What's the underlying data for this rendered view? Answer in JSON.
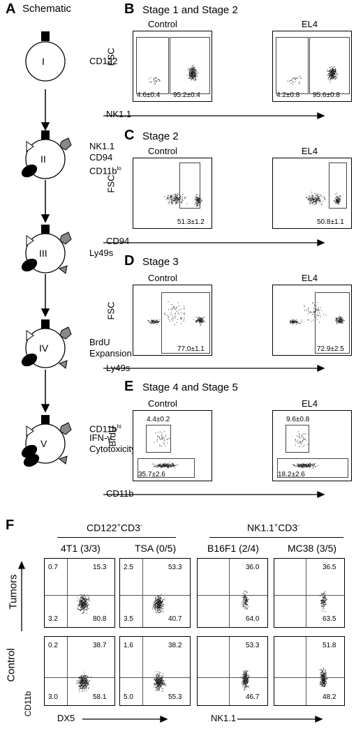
{
  "panelA": {
    "letter": "A",
    "title": "Schematic",
    "stages": [
      {
        "roman": "I",
        "label_lines": [
          "CD122"
        ]
      },
      {
        "roman": "II",
        "label_lines": [
          "NK1.1",
          "CD94",
          "CD11b"
        ],
        "sup": "lo"
      },
      {
        "roman": "III",
        "label_lines": [
          "Ly49s"
        ]
      },
      {
        "roman": "IV",
        "label_lines": [
          "BrdU",
          "Expansion"
        ]
      },
      {
        "roman": "V",
        "label_lines": [
          "CD11b",
          "IFN-γ",
          "Cytotoxicity"
        ],
        "sup": "hi"
      }
    ]
  },
  "panelB": {
    "letter": "B",
    "title": "Stage 1 and Stage 2",
    "plots": [
      {
        "label": "Control",
        "gates": [
          "4.6±0.4",
          "95.2±0.4"
        ]
      },
      {
        "label": "EL4",
        "gates": [
          "4.2±0.8",
          "95.6±0.8"
        ]
      }
    ],
    "ylabel": "FSC",
    "xlabel": "NK1.1"
  },
  "panelC": {
    "letter": "C",
    "title": "Stage 2",
    "plots": [
      {
        "label": "Control",
        "gates": [
          "51.3±1.2"
        ]
      },
      {
        "label": "EL4",
        "gates": [
          "50.8±1.1"
        ]
      }
    ],
    "ylabel": "FSC",
    "xlabel": "CD94"
  },
  "panelD": {
    "letter": "D",
    "title": "Stage 3",
    "plots": [
      {
        "label": "Control",
        "gates": [
          "77.0±1.1"
        ]
      },
      {
        "label": "EL4",
        "gates": [
          "72.9±2.5"
        ]
      }
    ],
    "ylabel": "FSC",
    "xlabel": "Ly49s"
  },
  "panelE": {
    "letter": "E",
    "title": "Stage 4 and Stage 5",
    "plots": [
      {
        "label": "Control",
        "gates": [
          "4.4±0.2",
          "35.7±2.6"
        ]
      },
      {
        "label": "EL4",
        "gates": [
          "9.6±0.8",
          "18.2±2.6"
        ]
      }
    ],
    "ylabel": "BrdU",
    "xlabel": "CD11b"
  },
  "panelF": {
    "letter": "F",
    "groups": [
      {
        "label": "CD122",
        "sup": "+",
        "label2": "CD3",
        "sup2": "-"
      },
      {
        "label": "NK1.1",
        "sup": "+",
        "label2": "CD3",
        "sup2": "-"
      }
    ],
    "columns": [
      "4T1 (3/3)",
      "TSA (0/5)",
      "B16F1 (2/4)",
      "MC38 (3/5)"
    ],
    "rows": [
      "Tumors",
      "Control"
    ],
    "row_axis_label": "CD11b",
    "x_labels": [
      "DX5",
      "NK1.1"
    ],
    "quadrants": {
      "tumors": [
        [
          "0.7",
          "15.3",
          "3.2",
          "80.8"
        ],
        [
          "2.5",
          "53.3",
          "3.5",
          "40.7"
        ],
        [
          "",
          "36.0",
          "",
          "64.0"
        ],
        [
          "",
          "36.5",
          "",
          "63.5"
        ]
      ],
      "control": [
        [
          "0.2",
          "38.7",
          "3.0",
          "58.1"
        ],
        [
          "1.6",
          "38.2",
          "5.0",
          "55.3"
        ],
        [
          "",
          "53.3",
          "",
          "46.7"
        ],
        [
          "",
          "51.8",
          "",
          "48.2"
        ]
      ]
    }
  }
}
